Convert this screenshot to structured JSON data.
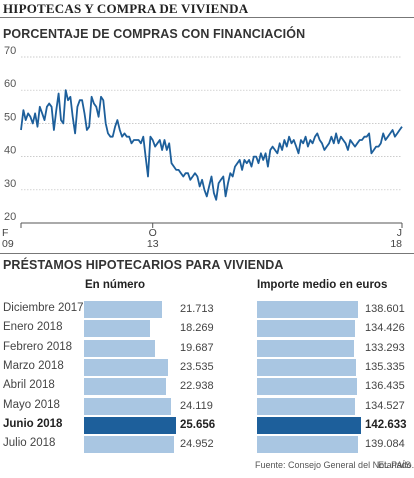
{
  "header": {
    "main_title": "HIPOTECAS Y COMPRA DE VIVIENDA",
    "line_chart_title": "PORCENTAJE DE COMPRAS CON FINANCIACIÓN",
    "bars_title": "PRÉSTAMOS HIPOTECARIOS PARA VIVIENDA"
  },
  "colors": {
    "line": "#1d5f9b",
    "bar_default": "#a9c6e2",
    "bar_highlight": "#1d5f9b",
    "grid": "#bbbbbb"
  },
  "footer": {
    "source": "Fuente: Consejo General del Notariado.",
    "brand": "EL PAÍS"
  },
  "chart_data": [
    {
      "type": "line",
      "title": "PORCENTAJE DE COMPRAS CON FINANCIACIÓN",
      "ylim": [
        20,
        70
      ],
      "yticks": [
        "70",
        "60",
        "50",
        "40",
        "30",
        "20"
      ],
      "xticks": [
        {
          "month": "F",
          "year": "09"
        },
        {
          "month": "O",
          "year": "13"
        },
        {
          "month": "J",
          "year": "18"
        }
      ],
      "xrange": [
        "2009-02",
        "2018-06"
      ],
      "grid": true,
      "series": [
        {
          "values": [
            48,
            54,
            51,
            53,
            52,
            50,
            53,
            49,
            55,
            53,
            51,
            55,
            56,
            55,
            48,
            54,
            59,
            51,
            50,
            60,
            57,
            58,
            52,
            47,
            55,
            57,
            57,
            53,
            48,
            49,
            58,
            56,
            55,
            52,
            58,
            57,
            50,
            47,
            46,
            46,
            49,
            51,
            48,
            46,
            47,
            46,
            46,
            44,
            45,
            45,
            45,
            44,
            46,
            40,
            34,
            46,
            45,
            43,
            44,
            45,
            42,
            45,
            42,
            44,
            38,
            37,
            36,
            36,
            35,
            34,
            35,
            35,
            33,
            34,
            35,
            34,
            31,
            33,
            30,
            28,
            31,
            34,
            29,
            27,
            32,
            33,
            34,
            28,
            32,
            35,
            34,
            37,
            38,
            39,
            36,
            39,
            38,
            39,
            37,
            40,
            40,
            38,
            41,
            39,
            41,
            37,
            42,
            43,
            42,
            41,
            44,
            42,
            45,
            43,
            46,
            44,
            45,
            43,
            41,
            45,
            44,
            46,
            43,
            45,
            44,
            46,
            47,
            45,
            44,
            42,
            43,
            44,
            46,
            44,
            47,
            44,
            46,
            45,
            44,
            42,
            45,
            44,
            43,
            44,
            45,
            45,
            46,
            46,
            47,
            41,
            42,
            43,
            43,
            44,
            47,
            45,
            46,
            47,
            48,
            46,
            47,
            48,
            49
          ]
        }
      ]
    },
    {
      "type": "bar",
      "title": "En número",
      "categories": [
        "Diciembre 2017",
        "Enero 2018",
        "Febrero 2018",
        "Marzo 2018",
        "Abril 2018",
        "Mayo 2018",
        "Junio 2018",
        "Julio 2018"
      ],
      "values": [
        21713,
        18269,
        19687,
        23535,
        22938,
        24119,
        25656,
        24952
      ],
      "labels": [
        "21.713",
        "18.269",
        "19.687",
        "23.535",
        "22.938",
        "24.119",
        "25.656",
        "24.952"
      ],
      "highlight": "Junio 2018"
    },
    {
      "type": "bar",
      "title": "Importe medio en euros",
      "categories": [
        "Diciembre 2017",
        "Enero 2018",
        "Febrero 2018",
        "Marzo 2018",
        "Abril 2018",
        "Mayo 2018",
        "Junio 2018",
        "Julio 2018"
      ],
      "values": [
        138601,
        134426,
        133293,
        135335,
        136435,
        134527,
        142633,
        139084
      ],
      "labels": [
        "138.601",
        "134.426",
        "133.293",
        "135.335",
        "136.435",
        "134.527",
        "142.633",
        "139.084"
      ],
      "highlight": "Junio 2018"
    }
  ]
}
